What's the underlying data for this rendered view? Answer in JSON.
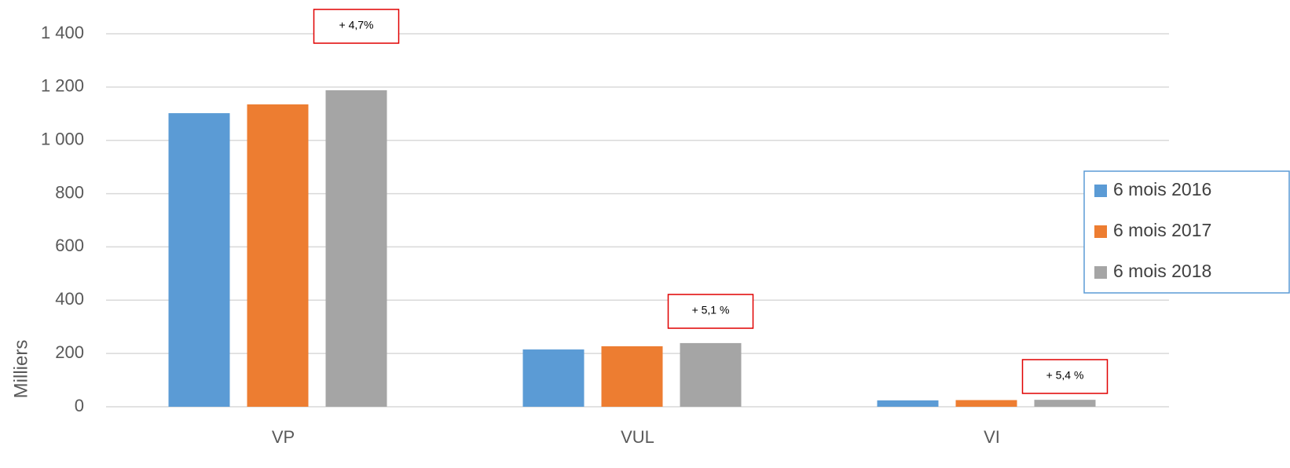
{
  "chart_data": {
    "type": "bar",
    "y_label": "Milliers",
    "categories": [
      "VP",
      "VUL",
      "VI"
    ],
    "series": [
      {
        "name": "6 mois 2016",
        "color": "#5b9bd5",
        "values": [
          1102,
          215,
          24
        ]
      },
      {
        "name": "6 mois 2017",
        "color": "#ed7d31",
        "values": [
          1135,
          227,
          25
        ]
      },
      {
        "name": "6 mois 2018",
        "color": "#a5a5a5",
        "values": [
          1188,
          239,
          26
        ]
      }
    ],
    "annotations": [
      "+ 4,7%",
      "+ 5,1 %",
      "+ 5,4 %"
    ],
    "ylim": [
      0,
      1400
    ],
    "yticks": [
      0,
      200,
      400,
      600,
      800,
      {
        "value": 1000,
        "label": "1 000"
      },
      {
        "value": 1200,
        "label": "1 200"
      },
      {
        "value": 1400,
        "label": "1 400"
      }
    ],
    "grid": true,
    "legend": "right"
  }
}
